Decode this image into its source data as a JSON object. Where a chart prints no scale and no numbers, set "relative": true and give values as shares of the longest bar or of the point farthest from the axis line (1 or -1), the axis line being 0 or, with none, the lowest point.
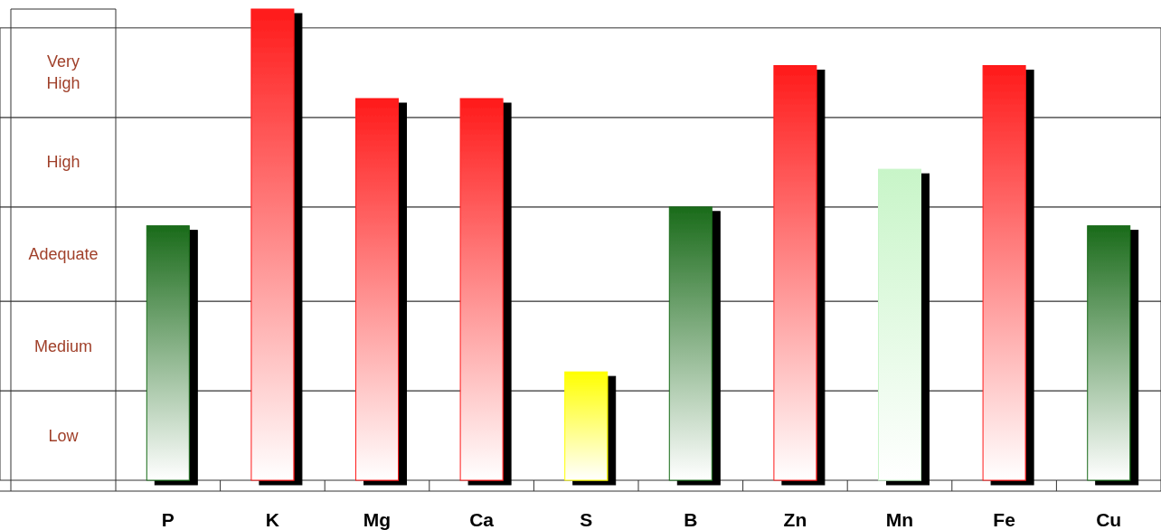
{
  "chart_data": {
    "type": "bar",
    "relative": true,
    "categories": [
      "P",
      "K",
      "Mg",
      "Ca",
      "S",
      "B",
      "Zn",
      "Mn",
      "Fe",
      "Cu"
    ],
    "values": [
      0.54,
      1,
      0.81,
      0.81,
      0.23,
      0.58,
      0.88,
      0.66,
      0.88,
      0.54
    ],
    "colors": [
      "#1a6b1a",
      "#ff1a1a",
      "#ff1a1a",
      "#ff1a1a",
      "#ffff00",
      "#1a6b1a",
      "#ff1a1a",
      "#c8f5c8",
      "#ff1a1a",
      "#1a6b1a"
    ],
    "bands": [
      {
        "axis": "y",
        "from": 0,
        "to": 0.19,
        "label": "Low",
        "color": "#ffffff"
      },
      {
        "axis": "y",
        "from": 0.19,
        "to": 0.38,
        "label": "Medium",
        "color": "#ffffff"
      },
      {
        "axis": "y",
        "from": 0.38,
        "to": 0.58,
        "label": "Adequate",
        "color": "#ffffff"
      },
      {
        "axis": "y",
        "from": 0.58,
        "to": 0.77,
        "label": "High",
        "color": "#ffffff"
      },
      {
        "axis": "y",
        "from": 0.77,
        "to": 0.96,
        "label": "Very High",
        "color": "#ffffff"
      }
    ]
  }
}
